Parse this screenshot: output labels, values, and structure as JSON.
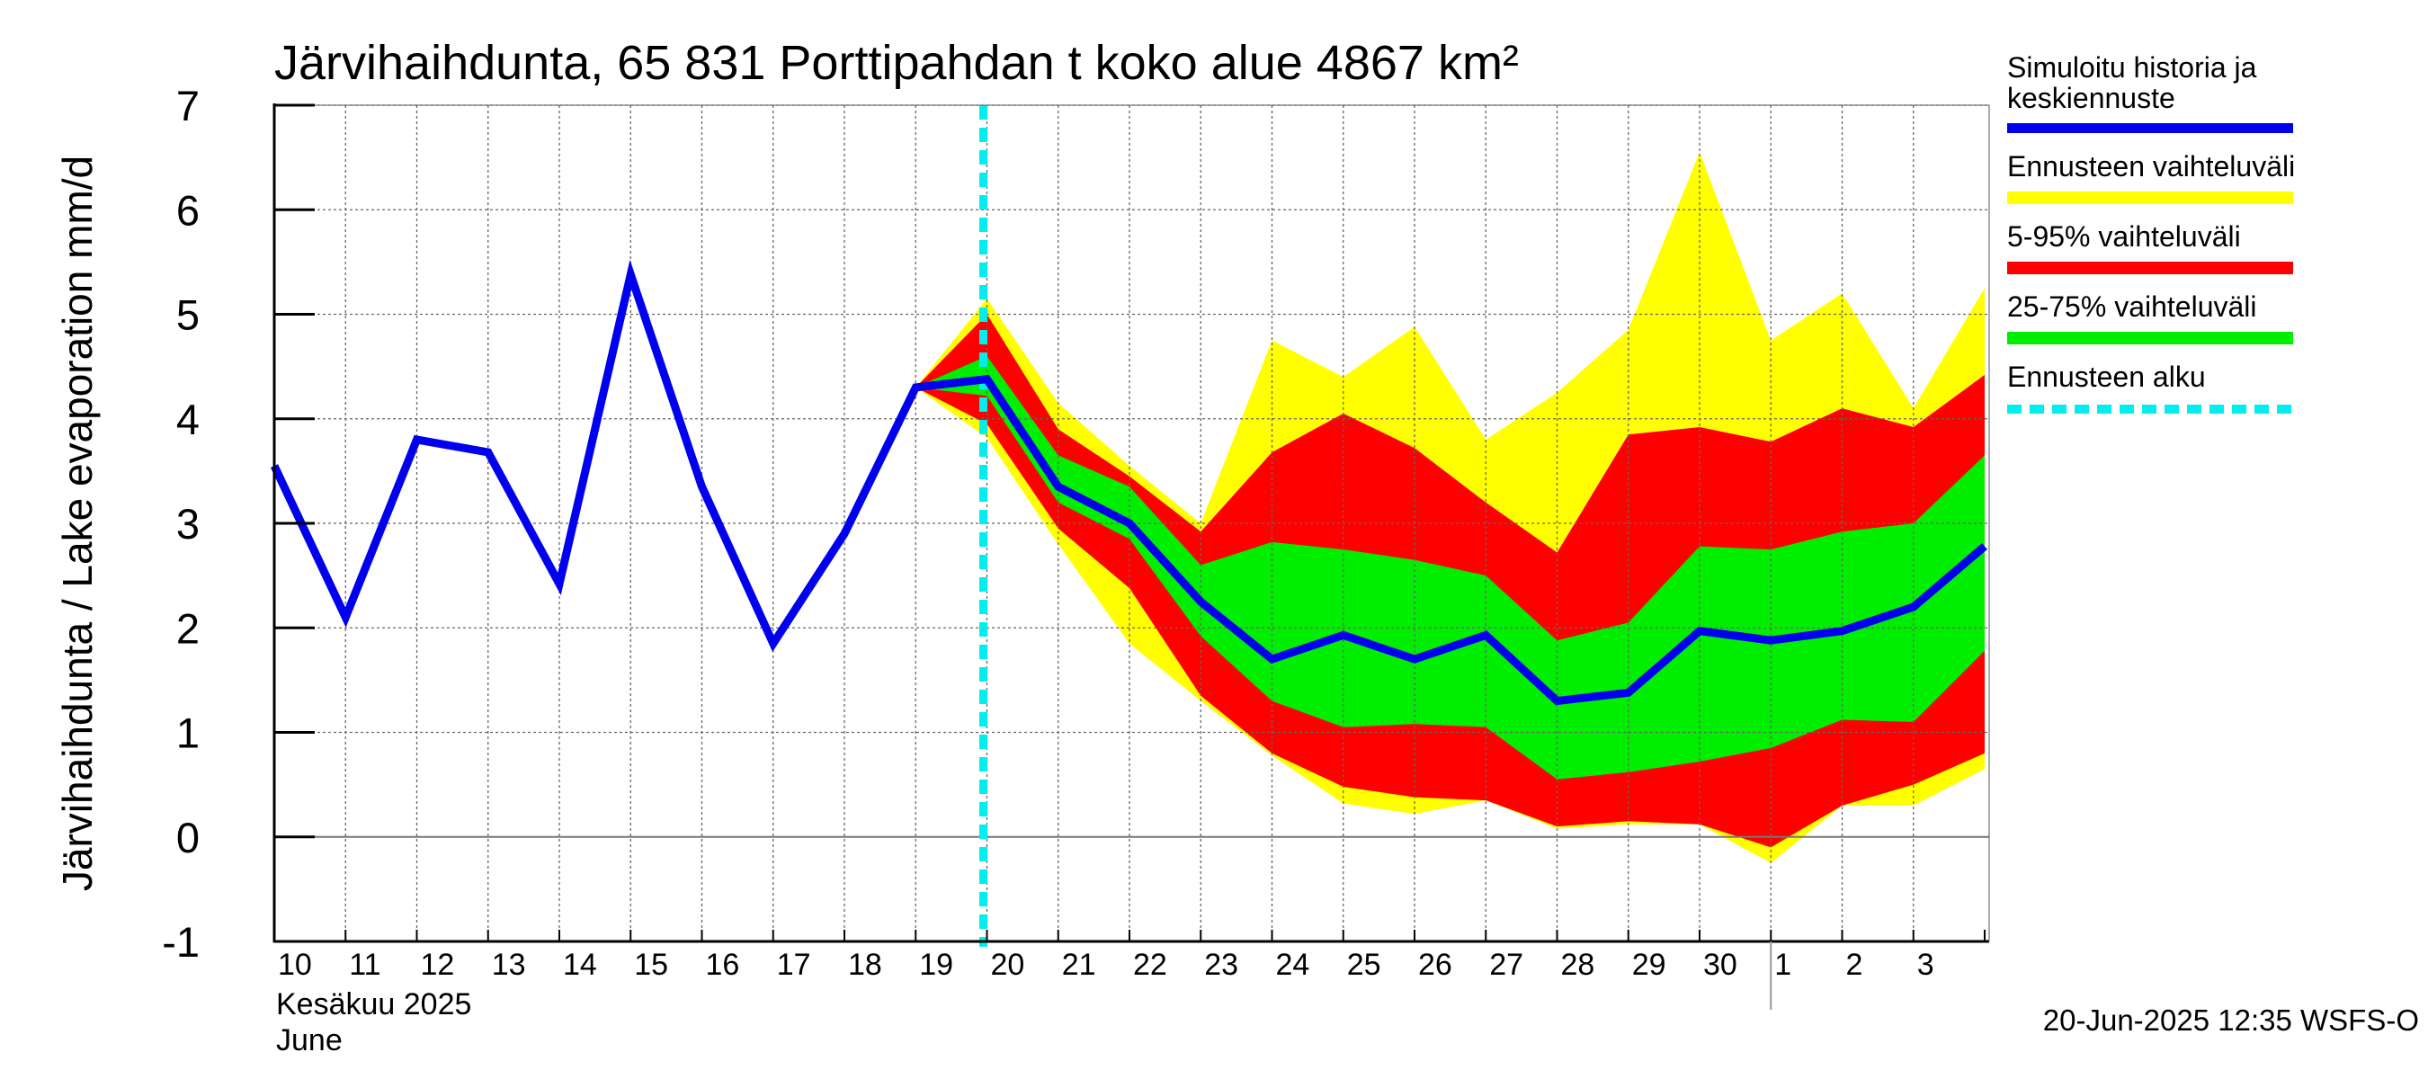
{
  "chart_data": {
    "type": "area",
    "title": "Järvihaihdunta, 65 831 Porttipahdan t koko alue 4867 km²",
    "ylabel": "Järvihaihdunta / Lake evaporation   mm/d",
    "ylim": [
      -1,
      7
    ],
    "yticks": [
      "-1",
      "0",
      "1",
      "2",
      "3",
      "4",
      "5",
      "6",
      "7"
    ],
    "grid": true,
    "x": [
      "2025-06-10",
      "2025-06-11",
      "2025-06-12",
      "2025-06-13",
      "2025-06-14",
      "2025-06-15",
      "2025-06-16",
      "2025-06-17",
      "2025-06-18",
      "2025-06-19",
      "2025-06-20",
      "2025-06-21",
      "2025-06-22",
      "2025-06-23",
      "2025-06-24",
      "2025-06-25",
      "2025-06-26",
      "2025-06-27",
      "2025-06-28",
      "2025-06-29",
      "2025-06-30",
      "2025-07-01",
      "2025-07-02",
      "2025-07-03",
      "2025-07-04"
    ],
    "xtick_labels": [
      "10",
      "11",
      "12",
      "13",
      "14",
      "15",
      "16",
      "17",
      "18",
      "19",
      "20",
      "21",
      "22",
      "23",
      "24",
      "25",
      "26",
      "27",
      "28",
      "29",
      "30",
      "1",
      "2",
      "3"
    ],
    "xaxis_month_fi": "Kesäkuu   2025",
    "xaxis_month_en": "June",
    "forecast_start": "2025-06-20",
    "series": [
      {
        "name": "Simuloitu historia ja keskiennuste",
        "color": "#0000ee",
        "values": [
          3.55,
          2.1,
          3.8,
          3.68,
          2.42,
          5.38,
          3.35,
          1.85,
          2.9,
          4.3,
          4.38,
          3.35,
          3.0,
          2.25,
          1.7,
          1.93,
          1.7,
          1.93,
          1.3,
          1.38,
          1.97,
          1.88,
          1.97,
          2.2,
          2.78
        ]
      },
      {
        "name": "Ennusteen vaihteluväli",
        "color": "#ffff00",
        "upper": [
          null,
          null,
          null,
          null,
          null,
          null,
          null,
          null,
          null,
          4.3,
          5.15,
          4.15,
          3.55,
          3.0,
          4.75,
          4.4,
          4.88,
          3.8,
          4.25,
          4.85,
          6.55,
          4.75,
          5.2,
          4.1,
          5.25
        ],
        "lower": [
          null,
          null,
          null,
          null,
          null,
          null,
          null,
          null,
          null,
          4.3,
          3.82,
          2.8,
          1.85,
          1.3,
          0.78,
          0.32,
          0.22,
          0.35,
          0.08,
          0.12,
          0.12,
          -0.25,
          0.3,
          0.3,
          0.65
        ]
      },
      {
        "name": "5-95% vaihteluväli",
        "color": "#ff0000",
        "upper": [
          null,
          null,
          null,
          null,
          null,
          null,
          null,
          null,
          null,
          4.3,
          5.0,
          3.9,
          3.45,
          2.92,
          3.68,
          4.05,
          3.72,
          3.2,
          2.72,
          3.85,
          3.92,
          3.78,
          4.1,
          3.92,
          4.42
        ],
        "lower": [
          null,
          null,
          null,
          null,
          null,
          null,
          null,
          null,
          null,
          4.3,
          3.95,
          2.95,
          2.38,
          1.35,
          0.8,
          0.48,
          0.38,
          0.35,
          0.1,
          0.15,
          0.12,
          -0.1,
          0.3,
          0.5,
          0.8
        ]
      },
      {
        "name": "25-75% vaihteluväli",
        "color": "#00ee00",
        "upper": [
          null,
          null,
          null,
          null,
          null,
          null,
          null,
          null,
          null,
          4.3,
          4.6,
          3.65,
          3.35,
          2.6,
          2.82,
          2.75,
          2.65,
          2.5,
          1.88,
          2.05,
          2.78,
          2.75,
          2.92,
          3.0,
          3.65
        ],
        "lower": [
          null,
          null,
          null,
          null,
          null,
          null,
          null,
          null,
          null,
          4.3,
          4.22,
          3.2,
          2.85,
          1.92,
          1.3,
          1.05,
          1.08,
          1.05,
          0.55,
          0.62,
          0.72,
          0.85,
          1.12,
          1.1,
          1.78
        ]
      },
      {
        "name": "Ennusteen alku",
        "color": "#00eeee"
      }
    ],
    "legend_position": "right",
    "timestamp": "20-Jun-2025 12:35 WSFS-O"
  }
}
